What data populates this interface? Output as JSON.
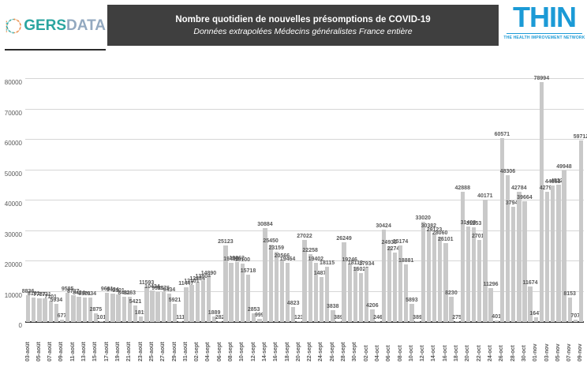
{
  "header": {
    "title": "Nombre quotidien de nouvelles présomptions de COVID-19",
    "subtitle": "Données extrapolées Médecins généralistes France entière",
    "banner_bg": "#3f3f3f"
  },
  "logos": {
    "gersdata": {
      "text_gers": "GERS",
      "text_data": "DATA",
      "gers_color": "#2ba5a0",
      "data_color": "#93a9c0",
      "dot_teal": "#2ba5a0",
      "dot_orange": "#e8833a"
    },
    "thin": {
      "name": "THIN",
      "caption": "THE HEALTH IMPROVEMENT NETWORK",
      "color": "#1b9ad6"
    }
  },
  "chart_data": {
    "type": "bar",
    "title": "Nombre quotidien de nouvelles présomptions de COVID-19",
    "subtitle": "Données extrapolées Médecins généralistes France entière",
    "xlabel": "",
    "ylabel": "",
    "ylim": [
      0,
      80000
    ],
    "ytick_step": 10000,
    "yticks": [
      0,
      10000,
      20000,
      30000,
      40000,
      50000,
      60000,
      70000,
      80000
    ],
    "grid": true,
    "legend": false,
    "bar_color": "#c9c9c9",
    "value_label_color": "#595959",
    "axis_label_color": "#595959",
    "x_tick_every": 2,
    "categories": [
      "03-août",
      "04-août",
      "05-août",
      "06-août",
      "07-août",
      "08-août",
      "09-août",
      "10-août",
      "11-août",
      "12-août",
      "13-août",
      "14-août",
      "15-août",
      "16-août",
      "17-août",
      "18-août",
      "19-août",
      "20-août",
      "21-août",
      "22-août",
      "23-août",
      "24-août",
      "25-août",
      "26-août",
      "27-août",
      "28-août",
      "29-août",
      "30-août",
      "31-août",
      "01-sept",
      "02-sept",
      "03-sept",
      "04-sept",
      "05-sept",
      "06-sept",
      "07-sept",
      "08-sept",
      "09-sept",
      "10-sept",
      "11-sept",
      "12-sept",
      "13-sept",
      "14-sept",
      "15-sept",
      "16-sept",
      "17-sept",
      "18-sept",
      "19-sept",
      "20-sept",
      "21-sept",
      "22-sept",
      "23-sept",
      "24-sept",
      "25-sept",
      "26-sept",
      "27-sept",
      "28-sept",
      "29-sept",
      "30-sept",
      "01-oct",
      "02-oct",
      "03-oct",
      "04-oct",
      "05-oct",
      "06-oct",
      "07-oct",
      "08-oct",
      "09-oct",
      "10-oct",
      "11-oct",
      "12-oct",
      "13-oct",
      "14-oct",
      "15-oct",
      "16-oct",
      "17-oct",
      "18-oct",
      "19-oct",
      "20-oct",
      "21-oct",
      "22-oct",
      "23-oct",
      "24-oct",
      "25-oct",
      "26-oct",
      "27-oct",
      "28-oct",
      "29-oct",
      "30-oct",
      "31-oct",
      "01-nov",
      "02-nov",
      "03-nov",
      "04-nov",
      "05-nov",
      "06-nov",
      "07-nov",
      "08-nov",
      "09-nov"
    ],
    "values": [
      8836,
      8101,
      7707,
      7731,
      7101,
      5934,
      677,
      9585,
      8737,
      8434,
      8101,
      7934,
      2875,
      101,
      9691,
      9434,
      9101,
      8431,
      8263,
      5421,
      1819,
      11593,
      10434,
      9921,
      9876,
      9434,
      5921,
      111,
      11447,
      12101,
      12884,
      13804,
      14890,
      1889,
      282,
      25123,
      19498,
      19862,
      19100,
      15718,
      2853,
      999,
      30884,
      25450,
      23159,
      20566,
      19464,
      4823,
      123,
      27022,
      22258,
      19402,
      14878,
      18115,
      3838,
      389,
      26249,
      19246,
      18113,
      16025,
      17934,
      4206,
      246,
      30424,
      24935,
      22749,
      25174,
      18881,
      5893,
      389,
      33020,
      30382,
      29123,
      28060,
      26101,
      8230,
      275,
      42888,
      31408,
      31253,
      27016,
      40171,
      11296,
      401,
      60571,
      48306,
      37945,
      42784,
      39664,
      11674,
      1647,
      78994,
      42798,
      44863,
      45221,
      49948,
      8153,
      707,
      59712
    ]
  }
}
